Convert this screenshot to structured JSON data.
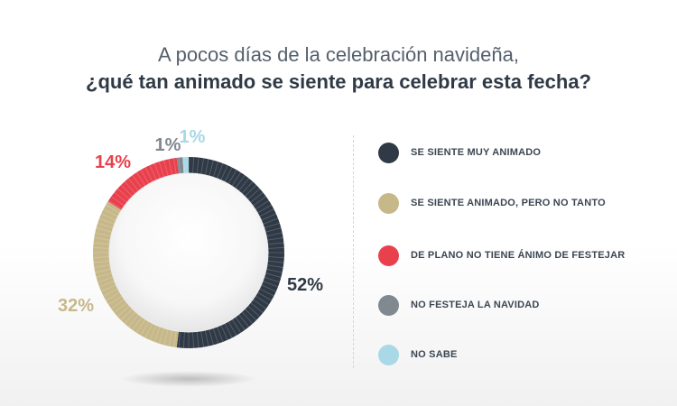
{
  "header": {
    "line1": "A pocos días de la celebración navideña,",
    "line2": "¿qué tan animado se siente para celebrar esta fecha?"
  },
  "chart_data": {
    "type": "pie",
    "style": "donut",
    "title": "A pocos días de la celebración navideña, ¿qué tan animado se siente para celebrar esta fecha?",
    "categories": [
      "SE SIENTE MUY ANIMADO",
      "SE SIENTE ANIMADO, PERO NO TANTO",
      "DE PLANO NO TIENE ÁNIMO DE FESTEJAR",
      "NO FESTEJA LA NAVIDAD",
      "NO SABE"
    ],
    "values": [
      52,
      32,
      14,
      1,
      1
    ],
    "labels": [
      "52%",
      "32%",
      "14%",
      "1%",
      "1%"
    ],
    "colors": [
      "#2f3a46",
      "#c7b88a",
      "#e8414d",
      "#808890",
      "#a9d8e6"
    ],
    "legend_position": "right"
  }
}
